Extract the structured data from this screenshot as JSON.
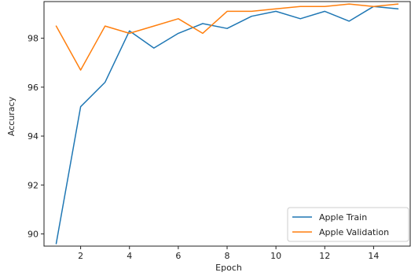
{
  "chart_data": {
    "type": "line",
    "xlabel": "Epoch",
    "ylabel": "Accuracy",
    "xlim": [
      0.5,
      15.5
    ],
    "ylim": [
      89.5,
      99.5
    ],
    "xticks": [
      2,
      4,
      6,
      8,
      10,
      12,
      14
    ],
    "yticks": [
      90,
      92,
      94,
      96,
      98
    ],
    "grid": false,
    "legend_position": "lower-right",
    "x": [
      1,
      2,
      3,
      4,
      5,
      6,
      7,
      8,
      9,
      10,
      11,
      12,
      13,
      14,
      15
    ],
    "series": [
      {
        "name": "Apple Train",
        "color": "#1f77b4",
        "values": [
          89.6,
          95.2,
          96.2,
          98.3,
          97.6,
          98.2,
          98.6,
          98.4,
          98.9,
          99.1,
          98.8,
          99.1,
          98.7,
          99.3,
          99.2
        ]
      },
      {
        "name": "Apple Validation",
        "color": "#ff7f0e",
        "values": [
          98.5,
          96.7,
          98.5,
          98.2,
          98.5,
          98.8,
          98.2,
          99.1,
          99.1,
          99.2,
          99.3,
          99.3,
          99.4,
          99.3,
          99.4
        ]
      }
    ]
  }
}
